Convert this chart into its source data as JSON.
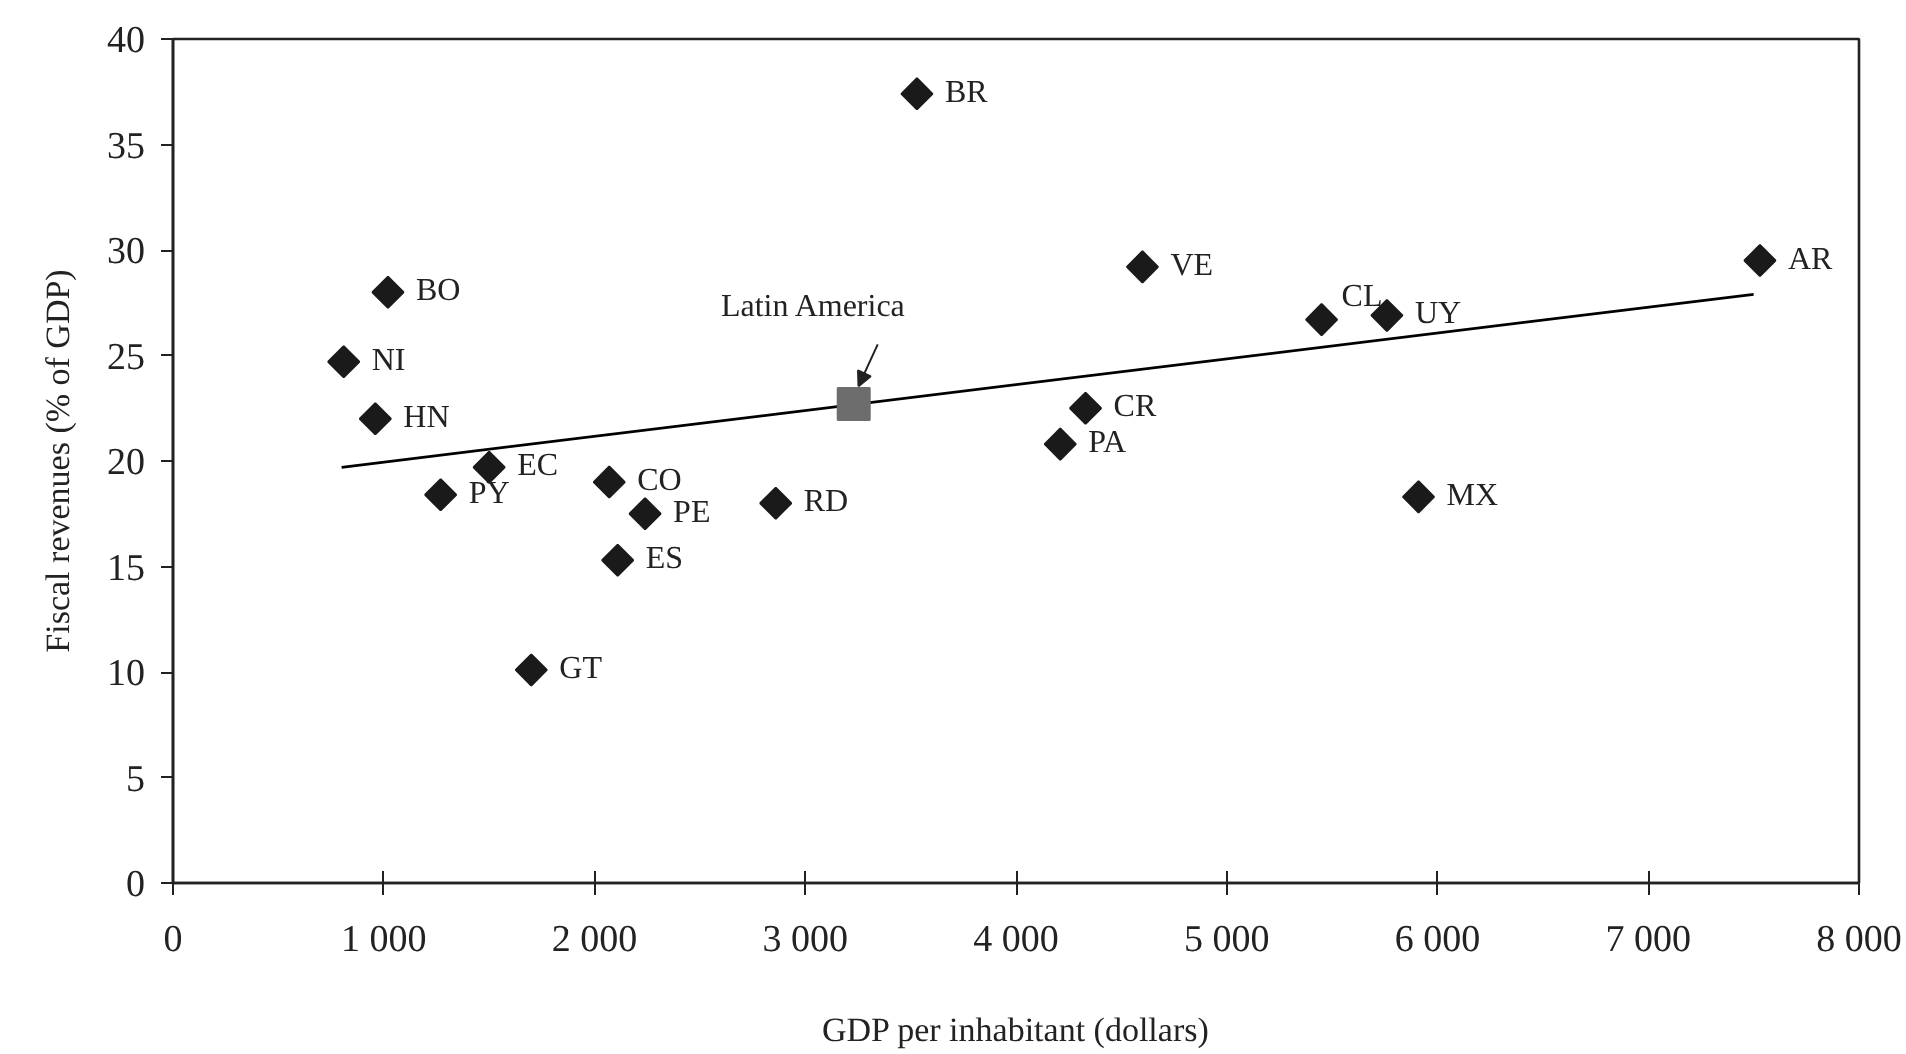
{
  "chart_data": {
    "type": "scatter",
    "xlabel": "GDP per inhabitant (dollars)",
    "ylabel": "Fiscal revenues (% of GDP)",
    "xlim": [
      0,
      8000
    ],
    "ylim": [
      0,
      40
    ],
    "xticks": [
      0,
      {
        "value": 1000,
        "label": "1 000"
      },
      {
        "value": 2000,
        "label": "2 000"
      },
      {
        "value": 3000,
        "label": "3 000"
      },
      {
        "value": 4000,
        "label": "4 000"
      },
      {
        "value": 5000,
        "label": "5 000"
      },
      {
        "value": 6000,
        "label": "6 000"
      },
      {
        "value": 7000,
        "label": "7 000"
      },
      {
        "value": 8000,
        "label": "8 000"
      }
    ],
    "yticks": [
      0,
      5,
      10,
      15,
      20,
      25,
      30,
      35,
      40
    ],
    "grid": false,
    "legend": false,
    "series": [
      {
        "marker": "diamond",
        "color": "#1a1a1a",
        "x": [
          3530,
          1020,
          810,
          960,
          1500,
          1270,
          2070,
          2240,
          2860,
          2110,
          1700,
          4600,
          5450,
          5760,
          7530,
          4330,
          4210,
          5910
        ],
        "values": [
          37.4,
          28.0,
          24.7,
          22.0,
          19.7,
          18.4,
          19.0,
          17.5,
          18.0,
          15.3,
          10.1,
          29.2,
          26.7,
          26.9,
          29.5,
          22.5,
          20.8,
          18.3
        ]
      },
      {
        "marker": "square",
        "name": "Latin America",
        "color": "#6d6d6d",
        "x": [
          3230
        ],
        "values": [
          22.7
        ]
      },
      {
        "type": "line",
        "color": "#000000",
        "line_style": "solid",
        "marker": "none",
        "x": [
          800,
          7500
        ],
        "values": [
          19.7,
          27.9
        ]
      }
    ],
    "annotations": [
      {
        "text": "BR",
        "x": 3530,
        "y": 37.4
      },
      {
        "text": "BO",
        "x": 1020,
        "y": 28.0
      },
      {
        "text": "NI",
        "x": 810,
        "y": 24.7
      },
      {
        "text": "HN",
        "x": 960,
        "y": 22.0
      },
      {
        "text": "EC",
        "x": 1500,
        "y": 19.7
      },
      {
        "text": "PY",
        "x": 1270,
        "y": 18.4
      },
      {
        "text": "CO",
        "x": 2070,
        "y": 19.0
      },
      {
        "text": "PE",
        "x": 2240,
        "y": 17.5
      },
      {
        "text": "RD",
        "x": 2860,
        "y": 18.0
      },
      {
        "text": "ES",
        "x": 2110,
        "y": 15.3
      },
      {
        "text": "GT",
        "x": 1700,
        "y": 10.1
      },
      {
        "text": "VE",
        "x": 4600,
        "y": 29.2
      },
      {
        "text": "CL",
        "x": 5450,
        "y": 26.7
      },
      {
        "text": "UY",
        "x": 5760,
        "y": 26.9
      },
      {
        "text": "AR",
        "x": 7530,
        "y": 29.5
      },
      {
        "text": "CR",
        "x": 4330,
        "y": 22.5
      },
      {
        "text": "PA",
        "x": 4210,
        "y": 20.8
      },
      {
        "text": "MX",
        "x": 5910,
        "y": 18.3
      }
    ]
  }
}
